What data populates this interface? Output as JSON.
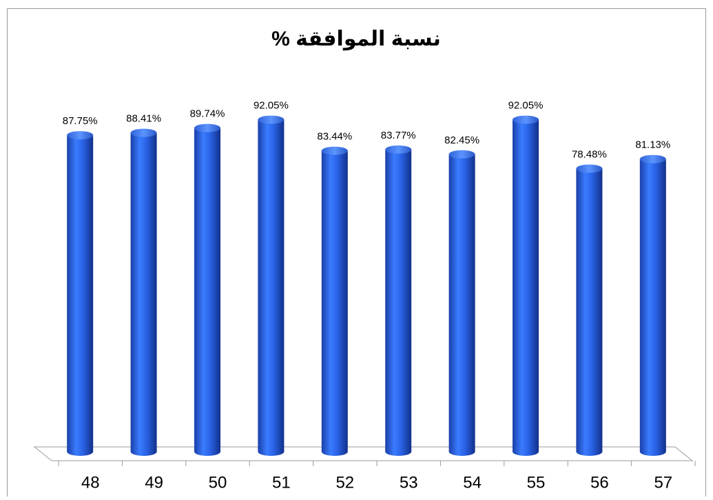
{
  "chart_data": {
    "type": "bar",
    "title": "نسبة الموافقة %",
    "categories": [
      "48",
      "49",
      "50",
      "51",
      "52",
      "53",
      "54",
      "55",
      "56",
      "57"
    ],
    "values": [
      87.75,
      88.41,
      89.74,
      92.05,
      83.44,
      83.77,
      82.45,
      92.05,
      78.48,
      81.13
    ],
    "value_labels": [
      "87.75%",
      "88.41%",
      "89.74%",
      "92.05%",
      "83.44%",
      "83.77%",
      "82.45%",
      "92.05%",
      "78.48%",
      "81.13%"
    ],
    "color": "#2f6df0",
    "ylim": [
      0,
      100
    ]
  }
}
